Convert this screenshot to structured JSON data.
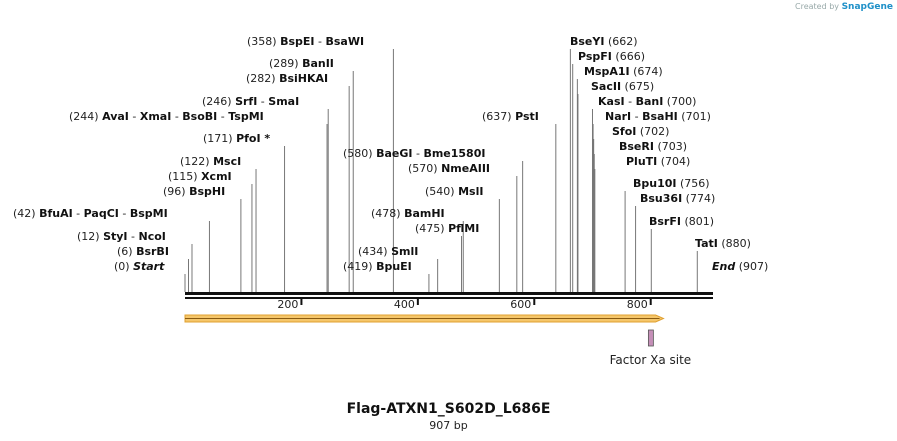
{
  "branding": {
    "created_by": "Created by",
    "app": "SnapGene"
  },
  "title": "Flag-ATXN1_S602D_L686E",
  "length_label": "907 bp",
  "sequence_length": 907,
  "ruler_ticks": [
    {
      "bp": 200,
      "label": "200"
    },
    {
      "bp": 400,
      "label": "400"
    },
    {
      "bp": 600,
      "label": "600"
    },
    {
      "bp": 800,
      "label": "800"
    }
  ],
  "left_sites": [
    {
      "pos": "(358)",
      "names": [
        "BspEI",
        "BsaWI"
      ],
      "bp": 358
    },
    {
      "pos": "(289)",
      "names": [
        "BanII"
      ],
      "bp": 289
    },
    {
      "pos": "(282)",
      "names": [
        "BsiHKAI"
      ],
      "bp": 282
    },
    {
      "pos": "(246)",
      "names": [
        "SrfI",
        "SmaI"
      ],
      "bp": 246
    },
    {
      "pos": "(244)",
      "names": [
        "AvaI",
        "XmaI",
        "BsoBI",
        "TspMI"
      ],
      "bp": 244
    },
    {
      "pos": "(171)",
      "names": [
        "PfoI *"
      ],
      "bp": 171
    },
    {
      "pos": "(580)",
      "names": [
        "BaeGI",
        "Bme1580I"
      ],
      "bp": 580
    },
    {
      "pos": "(570)",
      "names": [
        "NmeAIII"
      ],
      "bp": 570
    },
    {
      "pos": "(122)",
      "names": [
        "MscI"
      ],
      "bp": 122
    },
    {
      "pos": "(115)",
      "names": [
        "XcmI"
      ],
      "bp": 115
    },
    {
      "pos": "(96)",
      "names": [
        "BspHI"
      ],
      "bp": 96
    },
    {
      "pos": "(540)",
      "names": [
        "MslI"
      ],
      "bp": 540
    },
    {
      "pos": "(42)",
      "names": [
        "BfuAI",
        "PaqCI",
        "BspMI"
      ],
      "bp": 42
    },
    {
      "pos": "(478)",
      "names": [
        "BamHI"
      ],
      "bp": 478
    },
    {
      "pos": "(475)",
      "names": [
        "PflMI"
      ],
      "bp": 475
    },
    {
      "pos": "(12)",
      "names": [
        "StyI",
        "NcoI"
      ],
      "bp": 12
    },
    {
      "pos": "(434)",
      "names": [
        "SmlI"
      ],
      "bp": 434
    },
    {
      "pos": "(6)",
      "names": [
        "BsrBI"
      ],
      "bp": 6
    },
    {
      "pos": "(419)",
      "names": [
        "BpuEI"
      ],
      "bp": 419
    },
    {
      "pos": "(0)",
      "names": [
        "Start"
      ],
      "bp": 0,
      "italic": true
    },
    {
      "pos": "(637)",
      "names": [
        "PstI"
      ],
      "bp": 637
    }
  ],
  "right_sites": [
    {
      "names": [
        "BseYI"
      ],
      "pos": "(662)",
      "bp": 662
    },
    {
      "names": [
        "PspFI"
      ],
      "pos": "(666)",
      "bp": 666
    },
    {
      "names": [
        "MspA1I"
      ],
      "pos": "(674)",
      "bp": 674
    },
    {
      "names": [
        "SacII"
      ],
      "pos": "(675)",
      "bp": 675
    },
    {
      "names": [
        "KasI",
        "BanI"
      ],
      "pos": "(700)",
      "bp": 700
    },
    {
      "names": [
        "NarI",
        "BsaHI"
      ],
      "pos": "(701)",
      "bp": 701
    },
    {
      "names": [
        "SfoI"
      ],
      "pos": "(702)",
      "bp": 702
    },
    {
      "names": [
        "BseRI"
      ],
      "pos": "(703)",
      "bp": 703
    },
    {
      "names": [
        "PluTI"
      ],
      "pos": "(704)",
      "bp": 704
    },
    {
      "names": [
        "Bpu10I"
      ],
      "pos": "(756)",
      "bp": 756
    },
    {
      "names": [
        "Bsu36I"
      ],
      "pos": "(774)",
      "bp": 774
    },
    {
      "names": [
        "BsrFI"
      ],
      "pos": "(801)",
      "bp": 801
    },
    {
      "names": [
        "TatI"
      ],
      "pos": "(880)",
      "bp": 880
    },
    {
      "names": [
        "End"
      ],
      "pos": "(907)",
      "bp": 907,
      "italic": true
    }
  ],
  "features": [
    {
      "name": "orf-arrow",
      "start_bp": 0,
      "end_bp": 822,
      "color": "#f0c060",
      "direction": "forward"
    },
    {
      "name": "Factor Xa site",
      "start_bp": 796,
      "end_bp": 807,
      "color": "#c58fb8"
    }
  ],
  "colors": {
    "backbone": "#111111",
    "leader": "#777777",
    "orf_fill": "#f5c66a",
    "orf_edge": "#e0a030"
  }
}
